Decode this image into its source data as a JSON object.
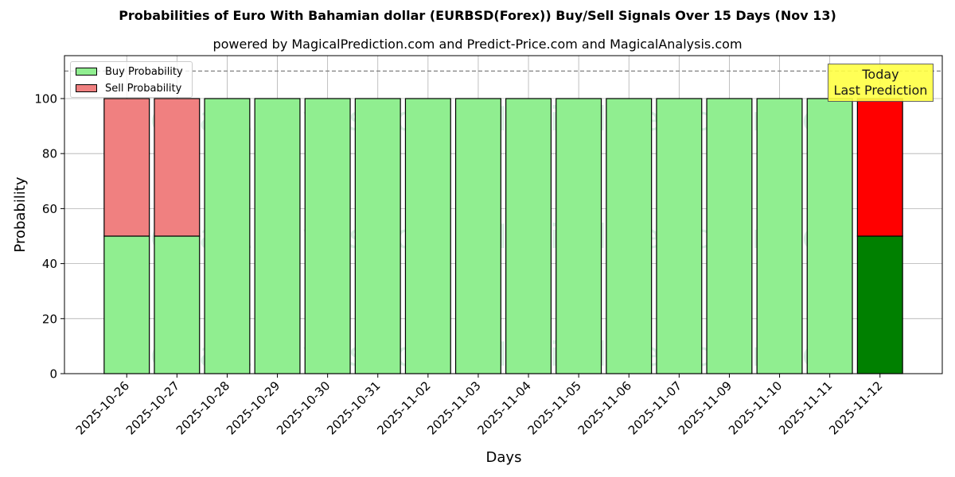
{
  "title": "Probabilities of Euro With Bahamian dollar (EURBSD(Forex)) Buy/Sell Signals Over 15 Days (Nov 13)",
  "subtitle": "powered by MagicalPrediction.com and Predict-Price.com and MagicalAnalysis.com",
  "legend": {
    "buy_label": "Buy Probability",
    "sell_label": "Sell Probability"
  },
  "annotation": {
    "line1": "Today",
    "line2": "Last Prediction"
  },
  "watermarks": [
    "MagicalAnalysis.com",
    "MagicalPrediction.com"
  ],
  "colors": {
    "buy": "#90ee90",
    "sell": "#f08080",
    "buy_today": "#008000",
    "sell_today": "#ff0000",
    "annotation_bg": "#ffff44",
    "grid": "#b0b0b0",
    "dashed_line": "#808080"
  },
  "chart_data": {
    "type": "bar",
    "stacked": true,
    "title": "Probabilities of Euro With Bahamian dollar (EURBSD(Forex)) Buy/Sell Signals Over 15 Days (Nov 13)",
    "subtitle": "powered by MagicalPrediction.com and Predict-Price.com and MagicalAnalysis.com",
    "xlabel": "Days",
    "ylabel": "Probability",
    "categories": [
      "2025-10-26",
      "2025-10-27",
      "2025-10-28",
      "2025-10-29",
      "2025-10-30",
      "2025-10-31",
      "2025-11-02",
      "2025-11-03",
      "2025-11-04",
      "2025-11-05",
      "2025-11-06",
      "2025-11-07",
      "2025-11-09",
      "2025-11-10",
      "2025-11-11",
      "2025-11-12"
    ],
    "series": [
      {
        "name": "Buy Probability",
        "values": [
          50,
          50,
          100,
          100,
          100,
          100,
          100,
          100,
          100,
          100,
          100,
          100,
          100,
          100,
          100,
          50
        ]
      },
      {
        "name": "Sell Probability",
        "values": [
          50,
          50,
          0,
          0,
          0,
          0,
          0,
          0,
          0,
          0,
          0,
          0,
          0,
          0,
          0,
          50
        ]
      }
    ],
    "yticks": [
      0,
      20,
      40,
      60,
      80,
      100
    ],
    "ylim": [
      0,
      115.6
    ],
    "xlim": [
      -1.24,
      16.24
    ],
    "hline": {
      "y": 110,
      "style": "dashed"
    },
    "highlight_last": true,
    "annotation": "Today\nLast Prediction",
    "grid": true,
    "legend_position": "upper left"
  }
}
